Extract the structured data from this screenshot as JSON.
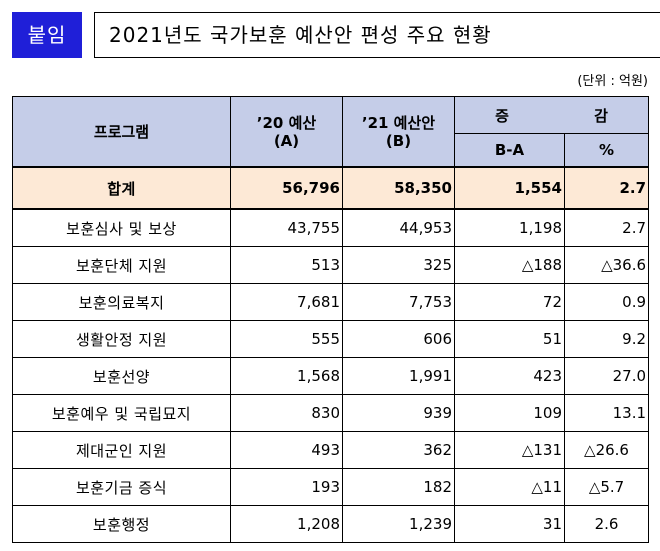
{
  "header": {
    "tag": "붙임",
    "title": "2021년도 국가보훈 예산안 편성 주요 현황"
  },
  "unit_note": "(단위 : 억원)",
  "table": {
    "headers": {
      "program": "프로그램",
      "budget_2020_line1": "’20 예산",
      "budget_2020_line2": "(A)",
      "budget_2021_line1": "’21 예산안",
      "budget_2021_line2": "(B)",
      "change": "증 감",
      "change_amount": "B-A",
      "change_percent": "%"
    },
    "total": {
      "name": "합계",
      "budget_2020": "56,796",
      "budget_2021": "58,350",
      "change_amount": "1,554",
      "change_percent": "2.7"
    },
    "rows": [
      {
        "name": "보훈심사 및 보상",
        "budget_2020": "43,755",
        "budget_2021": "44,953",
        "change_amount": "1,198",
        "change_percent": "2.7"
      },
      {
        "name": "보훈단체 지원",
        "budget_2020": "513",
        "budget_2021": "325",
        "change_amount": "△188",
        "change_percent": "△36.6"
      },
      {
        "name": "보훈의료복지",
        "budget_2020": "7,681",
        "budget_2021": "7,753",
        "change_amount": "72",
        "change_percent": "0.9"
      },
      {
        "name": "생활안정 지원",
        "budget_2020": "555",
        "budget_2021": "606",
        "change_amount": "51",
        "change_percent": "9.2"
      },
      {
        "name": "보훈선양",
        "budget_2020": "1,568",
        "budget_2021": "1,991",
        "change_amount": "423",
        "change_percent": "27.0"
      },
      {
        "name": "보훈예우 및 국립묘지",
        "budget_2020": "830",
        "budget_2021": "939",
        "change_amount": "109",
        "change_percent": "13.1"
      },
      {
        "name": "제대군인 지원",
        "budget_2020": "493",
        "budget_2021": "362",
        "change_amount": "△131",
        "change_percent": "△26.6"
      },
      {
        "name": "보훈기금 증식",
        "budget_2020": "193",
        "budget_2021": "182",
        "change_amount": "△11",
        "change_percent": "△5.7"
      },
      {
        "name": "보훈행정",
        "budget_2020": "1,208",
        "budget_2021": "1,239",
        "change_amount": "31",
        "change_percent": "2.6"
      }
    ]
  },
  "colors": {
    "tag_background": "#1f1fd8",
    "header_background": "#c5cde8",
    "total_background": "#fde9d6"
  }
}
